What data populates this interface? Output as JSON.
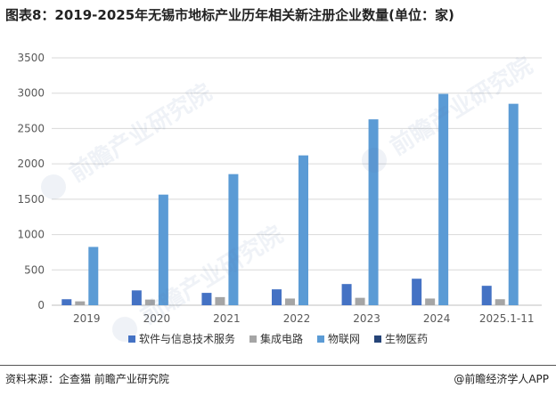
{
  "title": "图表8：2019-2025年无锡市地标产业历年相关新注册企业数量(单位：家)",
  "colors": {
    "series": [
      "#4472c4",
      "#a5a5a5",
      "#5b9bd5",
      "#264478"
    ],
    "grid": "#d9d9d9",
    "axis_text": "#595959"
  },
  "chart_data": {
    "type": "bar",
    "categories": [
      "2019",
      "2020",
      "2021",
      "2022",
      "2023",
      "2024",
      "2025.1-11"
    ],
    "series": [
      {
        "name": "软件与信息技术服务",
        "values": [
          85,
          210,
          175,
          225,
          300,
          375,
          275
        ]
      },
      {
        "name": "集成电路",
        "values": [
          55,
          80,
          115,
          95,
          105,
          95,
          85
        ]
      },
      {
        "name": "物联网",
        "values": [
          825,
          1565,
          1855,
          2120,
          2630,
          2990,
          2850
        ]
      },
      {
        "name": "生物医药",
        "values": [
          0,
          0,
          0,
          0,
          0,
          0,
          0
        ]
      }
    ],
    "ylim": [
      0,
      3500
    ],
    "yticks": [
      "0",
      "500",
      "1000",
      "1500",
      "2000",
      "2500",
      "3000",
      "3500"
    ],
    "grid": true,
    "legend_position": "bottom"
  },
  "watermark": "前瞻产业研究院",
  "footer": {
    "source": "资料来源：企查猫 前瞻产业研究院",
    "brand": "@前瞻经济学人APP"
  }
}
